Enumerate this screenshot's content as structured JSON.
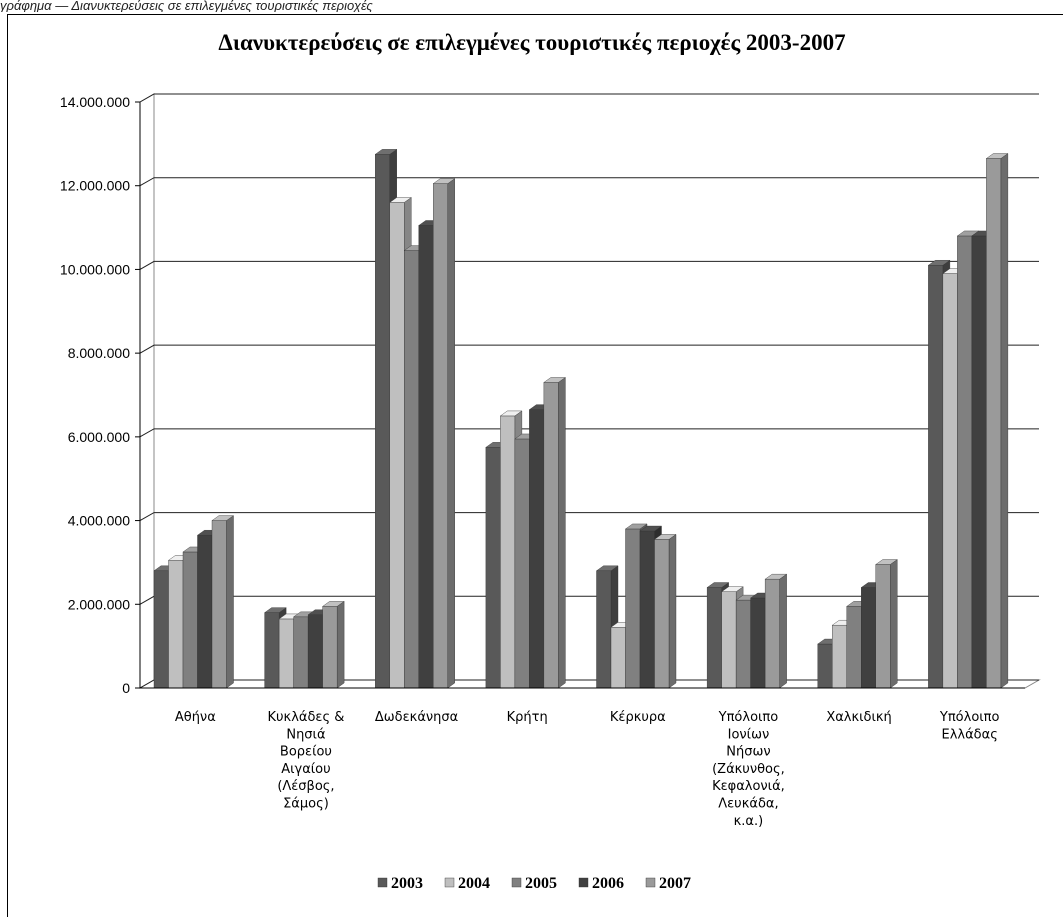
{
  "page": {
    "top_text": "γράφημα — Διανυκτερεύσεις σε επιλεγμένες τουριστικές περιοχές"
  },
  "chart_data": {
    "type": "bar",
    "title": "Διανυκτερεύσεις σε επιλεγμένες τουριστικές περιοχές 2003-2007",
    "xlabel": "",
    "ylabel": "",
    "ylim": [
      0,
      14000000
    ],
    "yticks": [
      0,
      2000000,
      4000000,
      6000000,
      8000000,
      10000000,
      12000000,
      14000000
    ],
    "ytick_labels": [
      "0",
      "2.000.000",
      "4.000.000",
      "6.000.000",
      "8.000.000",
      "10.000.000",
      "12.000.000",
      "14.000.000"
    ],
    "grid": true,
    "legend_position": "bottom",
    "categories": [
      "Αθήνα",
      "Κυκλάδες & Νησιά Βορείου Αιγαίου (Λέσβος, Σάμος)",
      "Δωδεκάνησα",
      "Κρήτη",
      "Κέρκυρα",
      "Υπόλοιπο Ιονίων Νήσων (Ζάκυνθος, Κεφαλονιά, Λευκάδα, κ.α.)",
      "Χαλκιδική",
      "Υπόλοιπο Ελλάδας"
    ],
    "category_lines": [
      [
        "Αθήνα"
      ],
      [
        "Κυκλάδες &",
        "Νησιά",
        "Βορείου",
        "Αιγαίου",
        "(Λέσβος,",
        "Σάμος)"
      ],
      [
        "Δωδεκάνησα"
      ],
      [
        "Κρήτη"
      ],
      [
        "Κέρκυρα"
      ],
      [
        "Υπόλοιπο",
        "Ιονίων",
        "Νήσων",
        "(Ζάκυνθος,",
        "Κεφαλονιά,",
        "Λευκάδα,",
        "κ.α.)"
      ],
      [
        "Χαλκιδική"
      ],
      [
        "Υπόλοιπο",
        "Ελλάδας"
      ]
    ],
    "series": [
      {
        "name": "2003",
        "color": "#595959",
        "values": [
          2800000,
          1800000,
          12750000,
          5750000,
          2800000,
          2400000,
          1050000,
          10100000
        ]
      },
      {
        "name": "2004",
        "color": "#bfbfbf",
        "values": [
          3050000,
          1650000,
          11600000,
          6500000,
          1450000,
          2300000,
          1500000,
          9900000
        ]
      },
      {
        "name": "2005",
        "color": "#808080",
        "values": [
          3250000,
          1700000,
          10450000,
          5950000,
          3800000,
          2100000,
          1950000,
          10800000
        ]
      },
      {
        "name": "2006",
        "color": "#404040",
        "values": [
          3650000,
          1750000,
          11050000,
          6650000,
          3750000,
          2150000,
          2400000,
          10800000
        ]
      },
      {
        "name": "2007",
        "color": "#9a9a9a",
        "values": [
          4000000,
          1950000,
          12050000,
          7300000,
          3550000,
          2600000,
          2950000,
          12650000
        ]
      }
    ]
  }
}
